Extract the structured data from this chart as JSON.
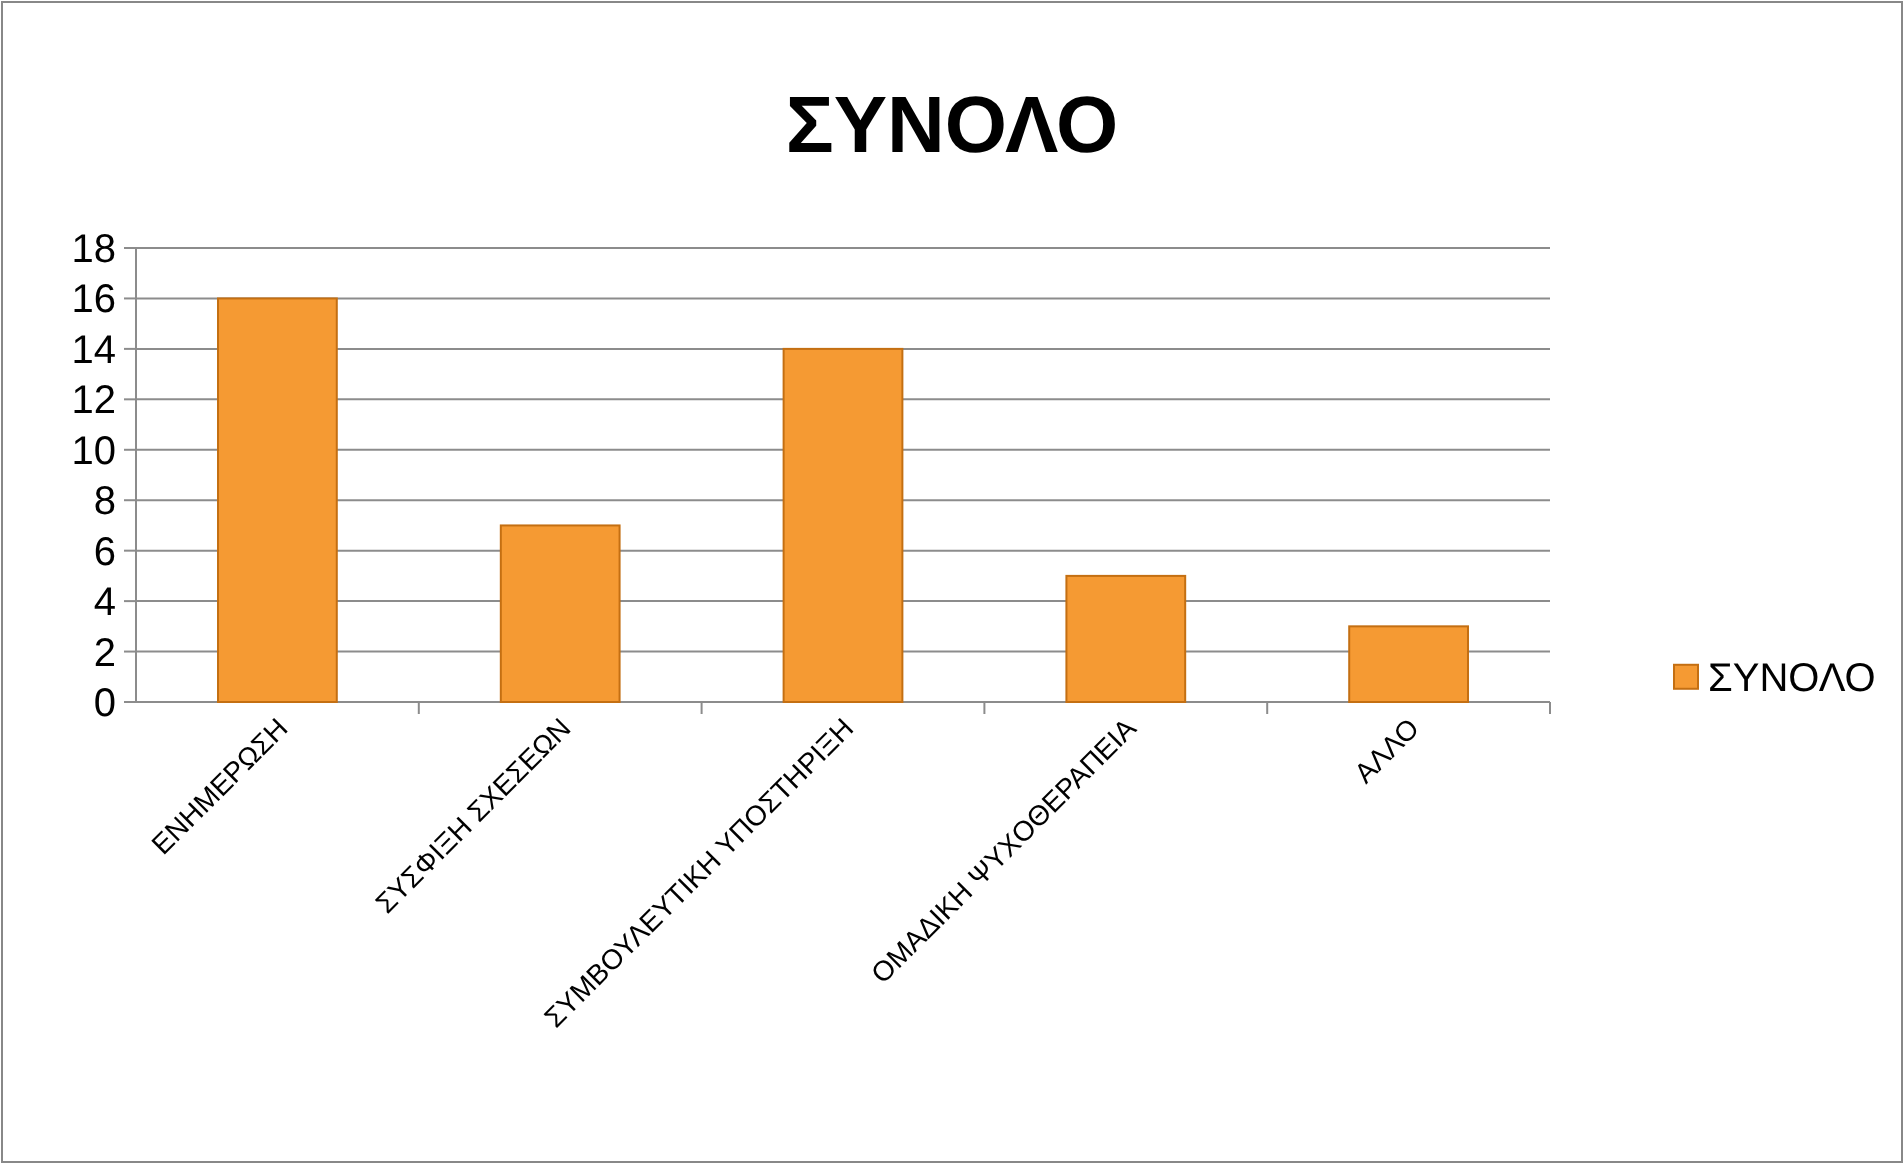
{
  "chart_data": {
    "type": "bar",
    "title": "ΣΥΝΟΛΟ",
    "categories": [
      "ΕΝΗΜΕΡΩΣΗ",
      "ΣΥΣΦΙΞΗ ΣΧΕΣΕΩΝ",
      "ΣΥΜΒΟΥΛΕΥΤΙΚΗ ΥΠΟΣΤΗΡΙΞΗ",
      "ΟΜΑΔΙΚΗ ΨΥΧΟΘΕΡΑΠΕΙΑ",
      "ΑΛΛΟ"
    ],
    "series": [
      {
        "name": "ΣΥΝΟΛΟ",
        "color": "#f59a33",
        "values": [
          16,
          7,
          14,
          5,
          3
        ]
      }
    ],
    "ylim": [
      0,
      18
    ],
    "yticks": [
      0,
      2,
      4,
      6,
      8,
      10,
      12,
      14,
      16,
      18
    ],
    "grid": "y",
    "legend": "right"
  }
}
